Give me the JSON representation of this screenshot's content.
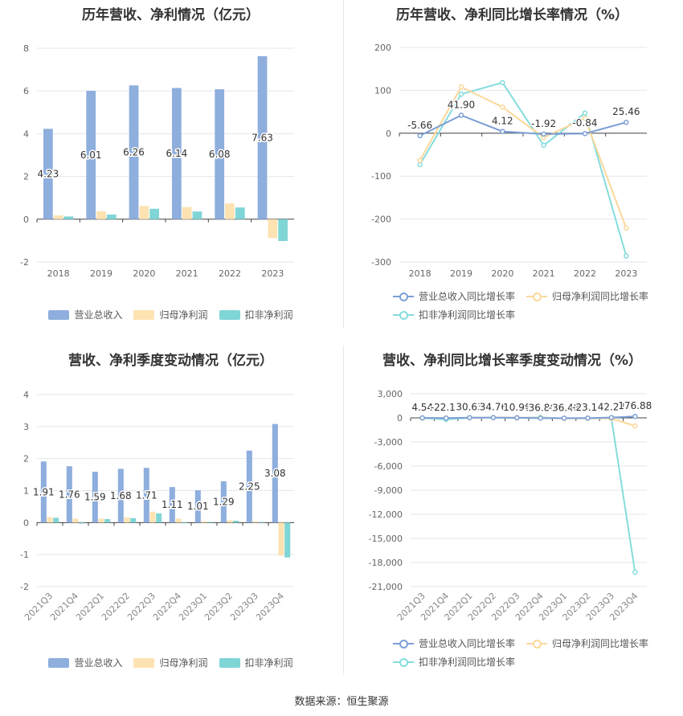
{
  "source": "数据来源：恒生聚源",
  "charts": [
    {
      "title": "历年营收、净利情况（亿元）",
      "legend": [
        {
          "name": "营业总收入",
          "color": "#8eaedd"
        },
        {
          "name": "归母净利润",
          "color": "#fde2b2"
        },
        {
          "name": "扣非净利润",
          "color": "#80d5d6"
        }
      ]
    },
    {
      "title": "历年营收、净利同比增长率情况（%）",
      "legend": [
        {
          "name": "营业总收入同比增长率",
          "color": "#7d9fd6"
        },
        {
          "name": "归母净利润同比增长率",
          "color": "#fbd89a"
        },
        {
          "name": "扣非净利润同比增长率",
          "color": "#86dcdc"
        }
      ]
    },
    {
      "title": "营收、净利季度变动情况（亿元）",
      "legend": [
        {
          "name": "营业总收入",
          "color": "#8eaedd"
        },
        {
          "name": "归母净利润",
          "color": "#fde2b2"
        },
        {
          "name": "扣非净利润",
          "color": "#80d5d6"
        }
      ]
    },
    {
      "title": "营收、净利同比增长率季度变动情况（%）",
      "legend": [
        {
          "name": "营业总收入同比增长率",
          "color": "#7d9fd6"
        },
        {
          "name": "归母净利润同比增长率",
          "color": "#fbd89a"
        },
        {
          "name": "扣非净利润同比增长率",
          "color": "#86dcdc"
        }
      ]
    }
  ],
  "chart_data": [
    {
      "type": "bar",
      "title": "历年营收、净利情况（亿元）",
      "categories": [
        "2018",
        "2019",
        "2020",
        "2021",
        "2022",
        "2023"
      ],
      "ylim": [
        -2,
        8
      ],
      "yticks": [
        -2,
        0,
        2,
        4,
        6,
        8
      ],
      "grid": true,
      "legend_position": "bottom",
      "series": [
        {
          "name": "营业总收入",
          "values": [
            4.23,
            6.01,
            6.26,
            6.14,
            6.08,
            7.63
          ],
          "labels": [
            "4.23",
            "6.01",
            "6.26",
            "6.14",
            "6.08",
            "7.63"
          ]
        },
        {
          "name": "归母净利润",
          "values": [
            0.18,
            0.37,
            0.62,
            0.57,
            0.74,
            -0.88
          ]
        },
        {
          "name": "扣非净利润",
          "values": [
            0.13,
            0.22,
            0.49,
            0.36,
            0.55,
            -1.02
          ]
        }
      ]
    },
    {
      "type": "line",
      "title": "历年营收、净利同比增长率情况（%）",
      "categories": [
        "2018",
        "2019",
        "2020",
        "2021",
        "2022",
        "2023"
      ],
      "ylim": [
        -300,
        200
      ],
      "yticks": [
        -300,
        -200,
        -100,
        0,
        100,
        200
      ],
      "grid": true,
      "legend_position": "bottom",
      "series": [
        {
          "name": "营业总收入同比增长率",
          "values": [
            -5.66,
            41.9,
            4.12,
            -1.92,
            -0.84,
            25.46
          ],
          "labels": [
            "-5.66",
            "41.90",
            "4.12",
            "-1.92",
            "-0.84",
            "25.46"
          ]
        },
        {
          "name": "归母净利润同比增长率",
          "values": [
            -63,
            108,
            61,
            -10,
            35,
            -221
          ]
        },
        {
          "name": "扣非净利润同比增长率",
          "values": [
            -73,
            91,
            118,
            -28,
            47,
            -286
          ]
        }
      ]
    },
    {
      "type": "bar",
      "title": "营收、净利季度变动情况（亿元）",
      "categories": [
        "2021Q3",
        "2021Q4",
        "2022Q1",
        "2022Q2",
        "2022Q3",
        "2022Q4",
        "2023Q1",
        "2023Q2",
        "2023Q3",
        "2023Q4"
      ],
      "ylim": [
        -2,
        4
      ],
      "yticks": [
        -2,
        -1,
        0,
        1,
        2,
        3,
        4
      ],
      "grid": true,
      "legend_position": "bottom",
      "series": [
        {
          "name": "营业总收入",
          "values": [
            1.91,
            1.76,
            1.59,
            1.68,
            1.71,
            1.11,
            1.01,
            1.29,
            2.25,
            3.08
          ],
          "labels": [
            "1.91",
            "1.76",
            "1.59",
            "1.68",
            "1.71",
            "1.11",
            "1.01",
            "1.29",
            "2.25",
            "3.08"
          ]
        },
        {
          "name": "归母净利润",
          "values": [
            0.17,
            0.12,
            0.12,
            0.16,
            0.34,
            0.12,
            0.04,
            0.07,
            0.04,
            -1.03
          ]
        },
        {
          "name": "扣非净利润",
          "values": [
            0.15,
            -0.03,
            0.11,
            0.14,
            0.29,
            -0.02,
            0.02,
            0.06,
            0.02,
            -1.09
          ]
        }
      ]
    },
    {
      "type": "line",
      "title": "营收、净利同比增长率季度变动情况（%）",
      "categories": [
        "2021Q3",
        "2021Q4",
        "2022Q1",
        "2022Q2",
        "2022Q3",
        "2022Q4",
        "2023Q1",
        "2023Q2",
        "2023Q3",
        "2023Q4"
      ],
      "ylim": [
        -21000,
        3000
      ],
      "yticks": [
        -21000,
        -18000,
        -15000,
        -12000,
        -9000,
        -6000,
        -3000,
        0,
        3000
      ],
      "grid": true,
      "legend_position": "bottom",
      "series": [
        {
          "name": "营业总收入同比增长率",
          "values": [
            4.54,
            -22.13,
            30.63,
            34.76,
            10.96,
            -36.86,
            -36.48,
            -23.14,
            42.24,
            176.88
          ],
          "labels": [
            "4.54",
            "-22.13",
            "30.63",
            "34.76",
            "10.96",
            "-36.86",
            "-36.48",
            "-23.14",
            "42.24",
            "176.88"
          ]
        },
        {
          "name": "归母净利润同比增长率",
          "values": [
            -20,
            -15,
            0,
            50,
            20,
            10,
            -70,
            -50,
            -80,
            -1000
          ]
        },
        {
          "name": "扣非净利润同比增长率",
          "values": [
            -40,
            -200,
            0,
            30,
            10,
            60,
            -80,
            -60,
            -70,
            -19200
          ]
        }
      ]
    }
  ]
}
